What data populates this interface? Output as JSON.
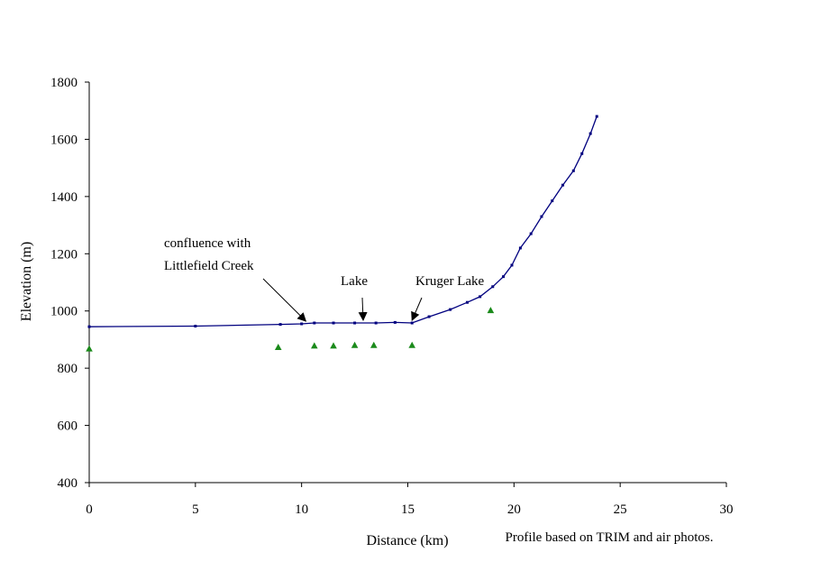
{
  "chart_data": {
    "type": "scatter",
    "xlabel": "Distance (km)",
    "ylabel": "Elevation (m)",
    "xlim": [
      0,
      30
    ],
    "ylim": [
      400,
      1800
    ],
    "xticks": [
      0,
      5,
      10,
      15,
      20,
      25,
      30
    ],
    "yticks": [
      400,
      600,
      800,
      1000,
      1200,
      1400,
      1600,
      1800
    ],
    "grid": false,
    "legend": "none",
    "note": "Profile based on TRIM and air photos.",
    "colors": {
      "profile": "#00007f",
      "points": "#1a8a1a"
    },
    "series": [
      {
        "style": "line-with-markers",
        "color": "#00007f",
        "points": [
          [
            0.0,
            945
          ],
          [
            5.0,
            947
          ],
          [
            9.0,
            953
          ],
          [
            10.0,
            955
          ],
          [
            10.6,
            958
          ],
          [
            11.5,
            958
          ],
          [
            12.5,
            958
          ],
          [
            13.5,
            958
          ],
          [
            14.4,
            960
          ],
          [
            15.2,
            958
          ],
          [
            16.0,
            980
          ],
          [
            17.0,
            1005
          ],
          [
            17.8,
            1030
          ],
          [
            18.4,
            1050
          ],
          [
            19.0,
            1085
          ],
          [
            19.5,
            1120
          ],
          [
            19.9,
            1160
          ],
          [
            20.3,
            1220
          ],
          [
            20.8,
            1270
          ],
          [
            21.3,
            1330
          ],
          [
            21.8,
            1385
          ],
          [
            22.3,
            1440
          ],
          [
            22.8,
            1490
          ],
          [
            23.2,
            1550
          ],
          [
            23.6,
            1620
          ],
          [
            23.9,
            1680
          ]
        ]
      },
      {
        "style": "triangle-markers",
        "color": "#1a8a1a",
        "points": [
          [
            0.0,
            868
          ],
          [
            8.9,
            873
          ],
          [
            10.6,
            878
          ],
          [
            11.5,
            878
          ],
          [
            12.5,
            880
          ],
          [
            13.4,
            880
          ],
          [
            15.2,
            880
          ],
          [
            18.9,
            1002
          ]
        ]
      }
    ],
    "annotations": [
      {
        "lines": [
          "confluence with",
          "Littlefield Creek"
        ],
        "target": [
          10.2,
          955
        ]
      },
      {
        "lines": [
          "Lake"
        ],
        "target": [
          12.9,
          958
        ]
      },
      {
        "lines": [
          "Kruger Lake"
        ],
        "target": [
          15.2,
          958
        ]
      }
    ]
  }
}
